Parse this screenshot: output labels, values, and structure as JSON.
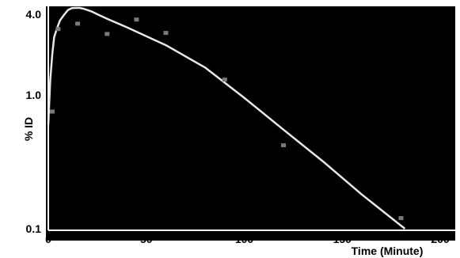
{
  "chart_data": {
    "type": "scatter",
    "title": "",
    "xlabel": "Time (Minute)",
    "ylabel": "% ID",
    "xlim": [
      0,
      200
    ],
    "ylim": [
      0.1,
      4.0
    ],
    "y_scale": "log",
    "grid": false,
    "x_ticks": [
      0,
      50,
      100,
      150,
      200
    ],
    "x_tick_labels": [
      "0",
      "50",
      "100",
      "150",
      "200"
    ],
    "y_ticks": [
      0.1,
      1.0,
      4.0
    ],
    "y_tick_labels": [
      "0.1",
      "1.0",
      "4.0"
    ],
    "series": [
      {
        "mode": "markers",
        "x": [
          2,
          5,
          15,
          30,
          45,
          60,
          90,
          120,
          180
        ],
        "y": [
          0.75,
          3.1,
          3.4,
          2.85,
          3.65,
          2.9,
          1.3,
          0.42,
          0.12
        ]
      },
      {
        "mode": "line",
        "x": [
          0,
          1,
          2,
          3,
          4,
          5,
          6,
          8,
          10,
          12,
          14,
          16,
          18,
          20,
          22,
          25,
          30,
          40,
          60,
          80,
          100,
          120,
          140,
          160,
          182
        ],
        "y": [
          0.6,
          1.3,
          2.0,
          2.7,
          3.0,
          3.3,
          3.6,
          3.95,
          4.3,
          4.45,
          4.5,
          4.48,
          4.4,
          4.3,
          4.2,
          4.0,
          3.7,
          3.2,
          2.35,
          1.6,
          0.95,
          0.55,
          0.32,
          0.18,
          0.1
        ]
      }
    ],
    "colors": {
      "plot_background": "#000000",
      "curve": "#e8e8e8",
      "markers": "#7a7a7a",
      "axes": "#ffffff",
      "text": "#000000"
    }
  }
}
